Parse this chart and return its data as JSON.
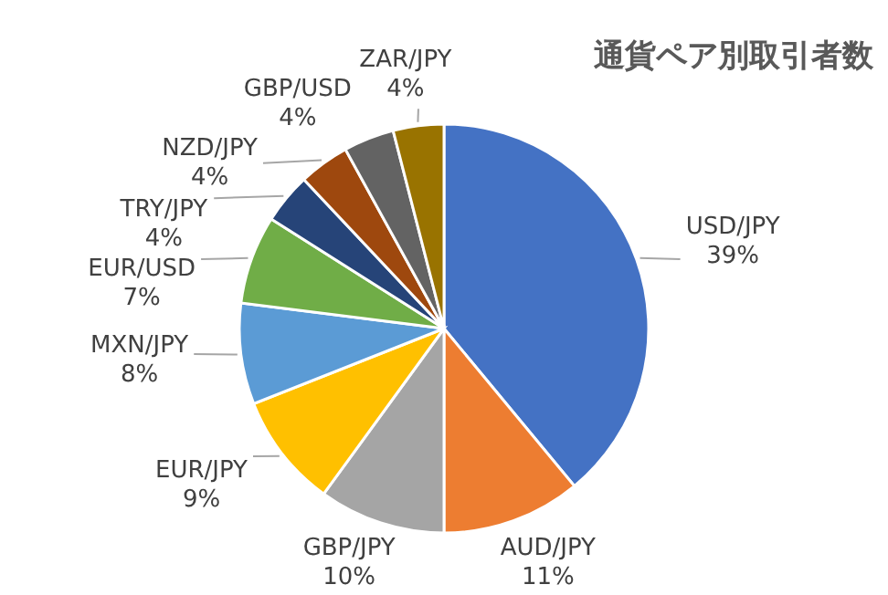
{
  "chart_data": {
    "type": "pie",
    "title": "通貨ペア別取引者数",
    "categories": [
      "USD/JPY",
      "AUD/JPY",
      "GBP/JPY",
      "EUR/JPY",
      "MXN/JPY",
      "EUR/USD",
      "TRY/JPY",
      "NZD/JPY",
      "GBP/USD",
      "ZAR/JPY"
    ],
    "values": [
      39,
      11,
      10,
      9,
      8,
      7,
      4,
      4,
      4,
      4
    ],
    "value_labels": [
      "39%",
      "11%",
      "10%",
      "9%",
      "8%",
      "7%",
      "4%",
      "4%",
      "4%",
      "4%"
    ],
    "colors": [
      "#4472c4",
      "#ed7d31",
      "#a5a5a5",
      "#ffc000",
      "#5b9bd5",
      "#70ad47",
      "#264478",
      "#9e480e",
      "#636363",
      "#997300"
    ]
  }
}
